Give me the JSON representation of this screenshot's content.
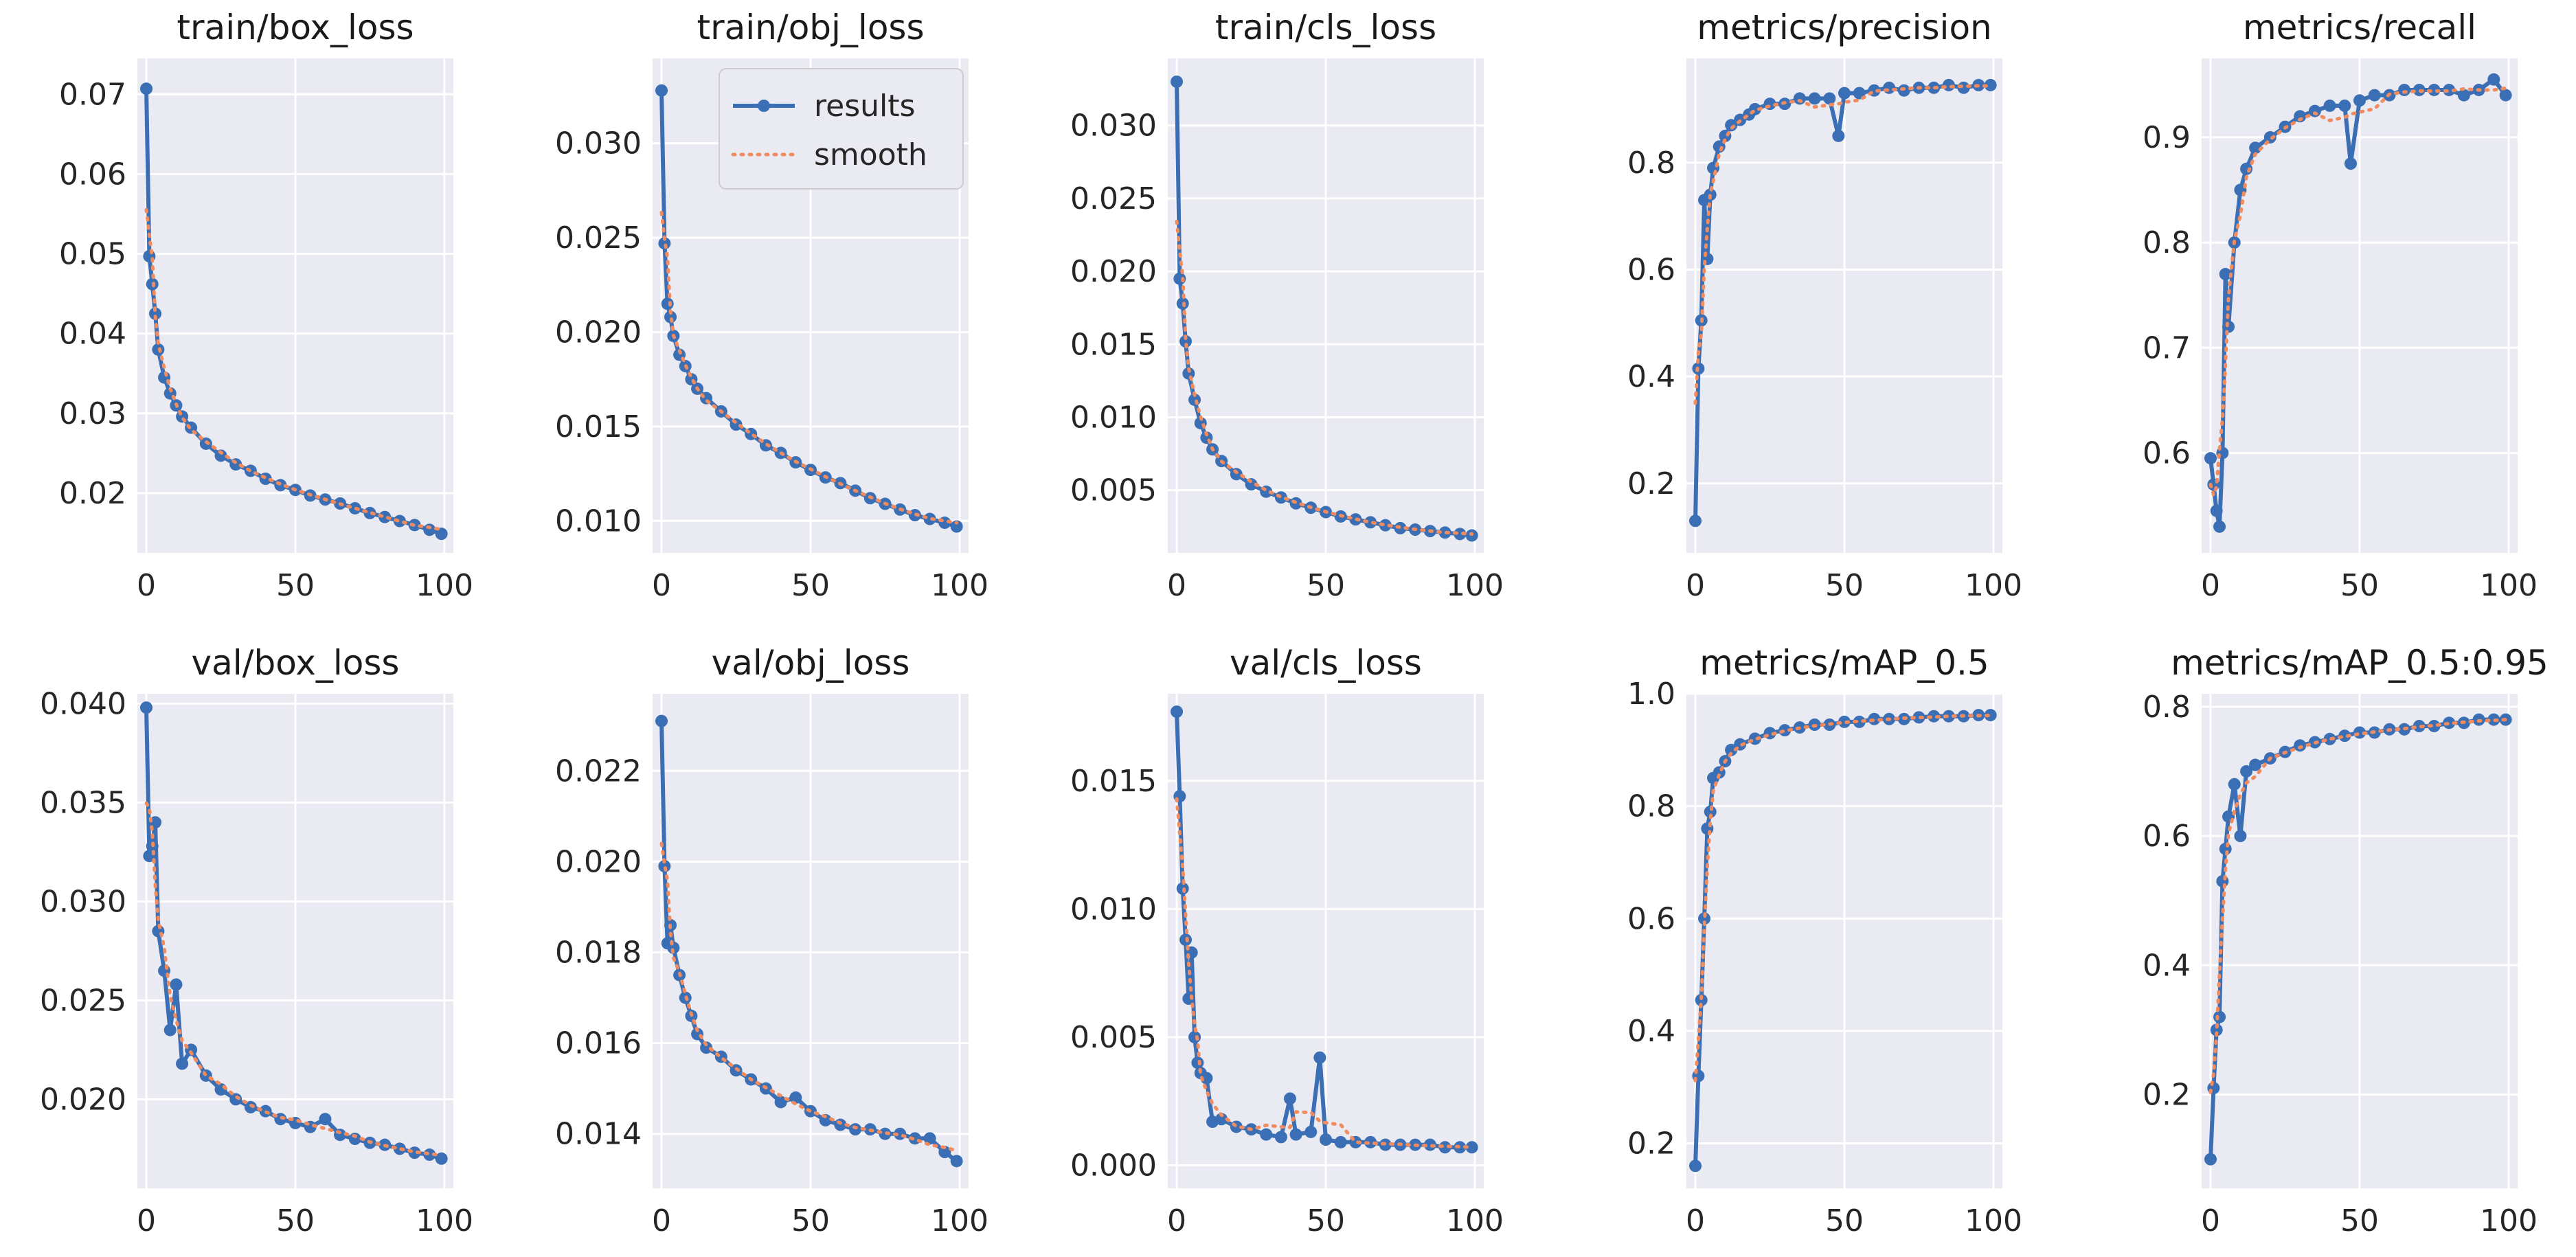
{
  "colors": {
    "plot_bg": "#EAEAF2",
    "grid": "#FFFFFF",
    "results": "#3A6FB5",
    "smooth": "#F28C5E"
  },
  "legend": {
    "results_label": "results",
    "smooth_label": "smooth"
  },
  "chart_data": [
    {
      "type": "line",
      "title": "train/box_loss",
      "x": [
        0,
        1,
        2,
        3,
        4,
        6,
        8,
        10,
        12,
        15,
        20,
        25,
        30,
        35,
        40,
        45,
        50,
        55,
        60,
        65,
        70,
        75,
        80,
        85,
        90,
        95,
        99
      ],
      "values": [
        0.0707,
        0.0497,
        0.0462,
        0.0425,
        0.038,
        0.0345,
        0.0325,
        0.031,
        0.0296,
        0.0282,
        0.0262,
        0.0247,
        0.0236,
        0.0228,
        0.0218,
        0.021,
        0.0204,
        0.0197,
        0.0192,
        0.0187,
        0.0181,
        0.0175,
        0.017,
        0.0165,
        0.016,
        0.0154,
        0.0149
      ],
      "xlim": [
        -3,
        103
      ],
      "ylim": [
        0.0125,
        0.0745
      ],
      "xticks": [
        0,
        50,
        100
      ],
      "yticks": [
        0.02,
        0.03,
        0.04,
        0.05,
        0.06,
        0.07
      ],
      "yticklabels": [
        "0.02",
        "0.03",
        "0.04",
        "0.05",
        "0.06",
        "0.07"
      ]
    },
    {
      "type": "line",
      "title": "train/obj_loss",
      "x": [
        0,
        1,
        2,
        3,
        4,
        6,
        8,
        10,
        12,
        15,
        20,
        25,
        30,
        35,
        40,
        45,
        50,
        55,
        60,
        65,
        70,
        75,
        80,
        85,
        90,
        95,
        99
      ],
      "values": [
        0.0328,
        0.0247,
        0.0215,
        0.0208,
        0.0198,
        0.0188,
        0.0182,
        0.0175,
        0.017,
        0.0165,
        0.0158,
        0.0151,
        0.0146,
        0.014,
        0.0136,
        0.0131,
        0.0127,
        0.0123,
        0.012,
        0.0116,
        0.0112,
        0.0109,
        0.0106,
        0.0103,
        0.0101,
        0.0099,
        0.0097
      ],
      "xlim": [
        -3,
        103
      ],
      "ylim": [
        0.0083,
        0.0345
      ],
      "xticks": [
        0,
        50,
        100
      ],
      "yticks": [
        0.01,
        0.015,
        0.02,
        0.025,
        0.03
      ],
      "yticklabels": [
        "0.010",
        "0.015",
        "0.020",
        "0.025",
        "0.030"
      ]
    },
    {
      "type": "line",
      "title": "train/cls_loss",
      "x": [
        0,
        1,
        2,
        3,
        4,
        6,
        8,
        10,
        12,
        15,
        20,
        25,
        30,
        35,
        40,
        45,
        50,
        55,
        60,
        65,
        70,
        75,
        80,
        85,
        90,
        95,
        99
      ],
      "values": [
        0.033,
        0.0195,
        0.0178,
        0.0152,
        0.013,
        0.0112,
        0.0096,
        0.0086,
        0.0078,
        0.007,
        0.0061,
        0.0054,
        0.0049,
        0.0045,
        0.0041,
        0.0038,
        0.0035,
        0.0032,
        0.003,
        0.0028,
        0.0026,
        0.0024,
        0.0023,
        0.0022,
        0.0021,
        0.002,
        0.0019
      ],
      "xlim": [
        -3,
        103
      ],
      "ylim": [
        0.0007,
        0.0346
      ],
      "xticks": [
        0,
        50,
        100
      ],
      "yticks": [
        0.005,
        0.01,
        0.015,
        0.02,
        0.025,
        0.03
      ],
      "yticklabels": [
        "0.005",
        "0.010",
        "0.015",
        "0.020",
        "0.025",
        "0.030"
      ]
    },
    {
      "type": "line",
      "title": "metrics/precision",
      "x": [
        0,
        1,
        2,
        3,
        4,
        5,
        6,
        8,
        10,
        12,
        15,
        18,
        20,
        25,
        30,
        35,
        40,
        45,
        48,
        50,
        55,
        60,
        65,
        70,
        75,
        80,
        85,
        90,
        95,
        99
      ],
      "values": [
        0.13,
        0.415,
        0.505,
        0.73,
        0.62,
        0.74,
        0.79,
        0.83,
        0.85,
        0.87,
        0.88,
        0.89,
        0.9,
        0.91,
        0.91,
        0.92,
        0.92,
        0.92,
        0.85,
        0.93,
        0.93,
        0.935,
        0.94,
        0.935,
        0.94,
        0.94,
        0.945,
        0.94,
        0.945,
        0.945
      ],
      "xlim": [
        -3,
        103
      ],
      "ylim": [
        0.07,
        0.995
      ],
      "xticks": [
        0,
        50,
        100
      ],
      "yticks": [
        0.2,
        0.4,
        0.6,
        0.8
      ],
      "yticklabels": [
        "0.2",
        "0.4",
        "0.6",
        "0.8"
      ]
    },
    {
      "type": "line",
      "title": "metrics/recall",
      "x": [
        0,
        1,
        2,
        3,
        4,
        5,
        6,
        8,
        10,
        12,
        15,
        20,
        25,
        30,
        35,
        40,
        45,
        47,
        50,
        55,
        60,
        65,
        70,
        75,
        80,
        85,
        90,
        95,
        99
      ],
      "values": [
        0.595,
        0.57,
        0.545,
        0.53,
        0.6,
        0.77,
        0.72,
        0.8,
        0.85,
        0.87,
        0.89,
        0.9,
        0.91,
        0.92,
        0.925,
        0.93,
        0.93,
        0.875,
        0.935,
        0.94,
        0.94,
        0.945,
        0.945,
        0.945,
        0.945,
        0.94,
        0.945,
        0.955,
        0.94
      ],
      "xlim": [
        -3,
        103
      ],
      "ylim": [
        0.505,
        0.975
      ],
      "xticks": [
        0,
        50,
        100
      ],
      "yticks": [
        0.6,
        0.7,
        0.8,
        0.9
      ],
      "yticklabels": [
        "0.6",
        "0.7",
        "0.8",
        "0.9"
      ]
    },
    {
      "type": "line",
      "title": "val/box_loss",
      "x": [
        0,
        1,
        2,
        3,
        4,
        6,
        8,
        10,
        12,
        15,
        20,
        25,
        30,
        35,
        40,
        45,
        50,
        55,
        60,
        65,
        70,
        75,
        80,
        85,
        90,
        95,
        99
      ],
      "values": [
        0.0398,
        0.0323,
        0.0328,
        0.034,
        0.0285,
        0.0265,
        0.0235,
        0.0258,
        0.0218,
        0.0225,
        0.0212,
        0.0205,
        0.02,
        0.0196,
        0.0194,
        0.019,
        0.0188,
        0.0186,
        0.019,
        0.0182,
        0.018,
        0.0178,
        0.0177,
        0.0175,
        0.0173,
        0.0172,
        0.017
      ],
      "xlim": [
        -3,
        103
      ],
      "ylim": [
        0.0155,
        0.0405
      ],
      "xticks": [
        0,
        50,
        100
      ],
      "yticks": [
        0.02,
        0.025,
        0.03,
        0.035,
        0.04
      ],
      "yticklabels": [
        "0.020",
        "0.025",
        "0.030",
        "0.035",
        "0.040"
      ]
    },
    {
      "type": "line",
      "title": "val/obj_loss",
      "x": [
        0,
        1,
        2,
        3,
        4,
        6,
        8,
        10,
        12,
        15,
        20,
        25,
        30,
        35,
        40,
        45,
        50,
        55,
        60,
        65,
        70,
        75,
        80,
        85,
        90,
        95,
        99
      ],
      "values": [
        0.0231,
        0.0199,
        0.0182,
        0.0186,
        0.0181,
        0.0175,
        0.017,
        0.0166,
        0.0162,
        0.0159,
        0.0157,
        0.0154,
        0.0152,
        0.015,
        0.0147,
        0.0148,
        0.0145,
        0.0143,
        0.0142,
        0.0141,
        0.0141,
        0.014,
        0.014,
        0.0139,
        0.0139,
        0.0136,
        0.0134
      ],
      "xlim": [
        -3,
        103
      ],
      "ylim": [
        0.0128,
        0.0237
      ],
      "xticks": [
        0,
        50,
        100
      ],
      "yticks": [
        0.014,
        0.016,
        0.018,
        0.02,
        0.022
      ],
      "yticklabels": [
        "0.014",
        "0.016",
        "0.018",
        "0.020",
        "0.022"
      ]
    },
    {
      "type": "line",
      "title": "val/cls_loss",
      "x": [
        0,
        1,
        2,
        3,
        4,
        5,
        6,
        7,
        8,
        10,
        12,
        15,
        20,
        25,
        30,
        35,
        38,
        40,
        45,
        48,
        50,
        55,
        60,
        65,
        70,
        75,
        80,
        85,
        90,
        95,
        99
      ],
      "values": [
        0.0177,
        0.0144,
        0.0108,
        0.0088,
        0.0065,
        0.0083,
        0.005,
        0.004,
        0.0036,
        0.0034,
        0.0017,
        0.0018,
        0.0015,
        0.0014,
        0.0012,
        0.0011,
        0.0026,
        0.0012,
        0.0013,
        0.0042,
        0.001,
        0.0009,
        0.0009,
        0.0009,
        0.0008,
        0.0008,
        0.0008,
        0.0008,
        0.0007,
        0.0007,
        0.0007
      ],
      "xlim": [
        -3,
        103
      ],
      "ylim": [
        -0.0009,
        0.0184
      ],
      "xticks": [
        0,
        50,
        100
      ],
      "yticks": [
        0,
        0.005,
        0.01,
        0.015
      ],
      "yticklabels": [
        "0.000",
        "0.005",
        "0.010",
        "0.015"
      ]
    },
    {
      "type": "line",
      "title": "metrics/mAP_0.5",
      "x": [
        0,
        1,
        2,
        3,
        4,
        5,
        6,
        8,
        10,
        12,
        15,
        20,
        25,
        30,
        35,
        40,
        45,
        50,
        55,
        60,
        65,
        70,
        75,
        80,
        85,
        90,
        95,
        99
      ],
      "values": [
        0.16,
        0.32,
        0.455,
        0.6,
        0.76,
        0.79,
        0.85,
        0.86,
        0.88,
        0.9,
        0.91,
        0.92,
        0.93,
        0.935,
        0.94,
        0.945,
        0.945,
        0.95,
        0.95,
        0.955,
        0.955,
        0.955,
        0.958,
        0.96,
        0.96,
        0.96,
        0.962,
        0.962
      ],
      "xlim": [
        -3,
        103
      ],
      "ylim": [
        0.12,
        1.0
      ],
      "xticks": [
        0,
        50,
        100
      ],
      "yticks": [
        0.2,
        0.4,
        0.6,
        0.8,
        1.0
      ],
      "yticklabels": [
        "0.2",
        "0.4",
        "0.6",
        "0.8",
        "1.0"
      ]
    },
    {
      "type": "line",
      "title": "metrics/mAP_0.5:0.95",
      "x": [
        0,
        1,
        2,
        3,
        4,
        5,
        6,
        8,
        10,
        12,
        15,
        20,
        25,
        30,
        35,
        40,
        45,
        50,
        55,
        60,
        65,
        70,
        75,
        80,
        85,
        90,
        95,
        99
      ],
      "values": [
        0.1,
        0.21,
        0.3,
        0.32,
        0.53,
        0.58,
        0.63,
        0.68,
        0.6,
        0.7,
        0.71,
        0.72,
        0.73,
        0.74,
        0.745,
        0.75,
        0.755,
        0.76,
        0.76,
        0.765,
        0.765,
        0.77,
        0.77,
        0.775,
        0.775,
        0.78,
        0.78,
        0.78
      ],
      "xlim": [
        -3,
        103
      ],
      "ylim": [
        0.055,
        0.82
      ],
      "xticks": [
        0,
        50,
        100
      ],
      "yticks": [
        0.2,
        0.4,
        0.6,
        0.8
      ],
      "yticklabels": [
        "0.2",
        "0.4",
        "0.6",
        "0.8"
      ]
    }
  ]
}
